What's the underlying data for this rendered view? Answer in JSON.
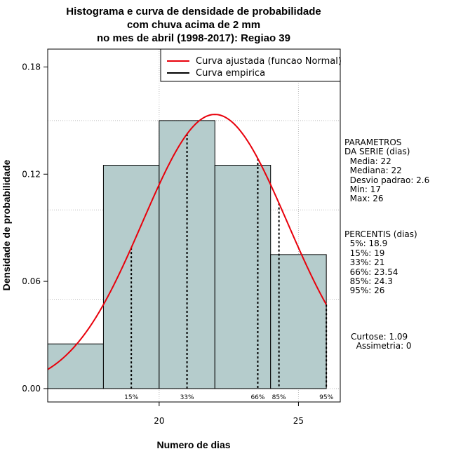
{
  "chart_data": {
    "type": "bar",
    "title": [
      "Histograma e curva de densidade de probabilidade",
      "com chuva acima de 2 mm",
      "no mes de abril (1998-2017): Regiao 39"
    ],
    "xlabel": "Numero de dias",
    "ylabel": "Densidade de probabilidade",
    "xlim": [
      16.0,
      26.5
    ],
    "ylim": [
      -0.0075,
      0.19
    ],
    "x_ticks": [
      20,
      25
    ],
    "y_ticks": [
      0.0,
      0.06,
      0.12,
      0.18
    ],
    "y_tick_labels": [
      "0.00",
      "0.06",
      "0.12",
      "0.18"
    ],
    "grid_x": [
      20,
      25
    ],
    "grid_y": [
      0.05,
      0.1,
      0.15
    ],
    "bins": [
      {
        "start": 16,
        "end": 18,
        "density": 0.025
      },
      {
        "start": 18,
        "end": 20,
        "density": 0.125
      },
      {
        "start": 20,
        "end": 22,
        "density": 0.15
      },
      {
        "start": 22,
        "end": 24,
        "density": 0.125
      },
      {
        "start": 24,
        "end": 26,
        "density": 0.075
      }
    ],
    "bar_color": "#b5cccc",
    "fitted_curve": {
      "name": "Curva ajustada (funcao Normal)",
      "mean": 22,
      "sd": 2.6,
      "color": "#e8000b"
    },
    "empirical_curve": {
      "name": "Curva empirica",
      "color": "#000000"
    },
    "percentiles": [
      {
        "label": "15%",
        "x": 19
      },
      {
        "label": "33%",
        "x": 21
      },
      {
        "label": "66%",
        "x": 23.54
      },
      {
        "label": "85%",
        "x": 24.3
      },
      {
        "label": "95%",
        "x": 26
      }
    ],
    "legend_position": "top-right"
  },
  "params": {
    "title1": "PARAMETROS",
    "title2": "DA SERIE (dias)",
    "lines": [
      "  Media: 22",
      "  Mediana: 22",
      "  Desvio padrao: 2.6",
      "  Min: 17",
      "  Max: 26"
    ]
  },
  "percentis": {
    "title": "PERCENTIS (dias)",
    "lines": [
      "  5%: 18.9",
      "  15%: 19",
      "  33%: 21",
      "  66%: 23.54",
      "  85%: 24.3",
      "  95%: 26"
    ]
  },
  "stats": {
    "curtose": "Curtose: 1.09",
    "assimetria": "  Assimetria: 0"
  }
}
